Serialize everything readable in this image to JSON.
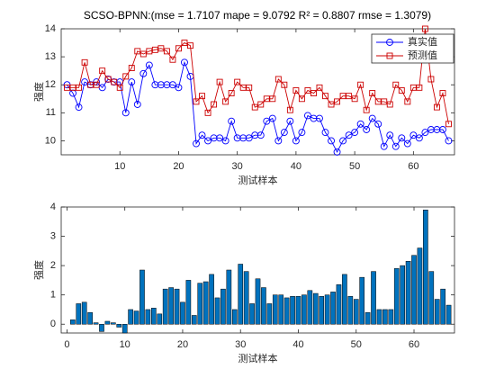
{
  "chart_data": [
    {
      "type": "line",
      "title": "SCSO-BPNN:(mse = 1.7107 mape = 9.0792  R² = 0.8807 rmse = 1.3079)",
      "x_label": "测试样本",
      "y_label": "强度",
      "xlim": [
        0,
        67
      ],
      "xticks": [
        10,
        20,
        30,
        40,
        50,
        60
      ],
      "ylim": [
        9.5,
        14
      ],
      "yticks": [
        10,
        11,
        12,
        13,
        14
      ],
      "legend": "upper right",
      "x": [
        1,
        2,
        3,
        4,
        5,
        6,
        7,
        8,
        9,
        10,
        11,
        12,
        13,
        14,
        15,
        16,
        17,
        18,
        19,
        20,
        21,
        22,
        23,
        24,
        25,
        26,
        27,
        28,
        29,
        30,
        31,
        32,
        33,
        34,
        35,
        36,
        37,
        38,
        39,
        40,
        41,
        42,
        43,
        44,
        45,
        46,
        47,
        48,
        49,
        50,
        51,
        52,
        53,
        54,
        55,
        56,
        57,
        58,
        59,
        60,
        61,
        62,
        63,
        64,
        65,
        66
      ],
      "series": [
        {
          "name": "真实值",
          "color": "#0000ff",
          "marker": "circle",
          "values": [
            12.0,
            11.7,
            11.2,
            12.1,
            12.0,
            12.1,
            11.9,
            12.2,
            12.1,
            12.1,
            11.0,
            12.1,
            11.3,
            12.4,
            12.7,
            12.0,
            12.0,
            12.0,
            12.0,
            11.9,
            12.8,
            12.3,
            9.9,
            10.2,
            10.0,
            10.1,
            10.1,
            10.0,
            10.7,
            10.1,
            10.1,
            10.1,
            10.2,
            10.2,
            10.7,
            10.8,
            10.0,
            10.3,
            10.7,
            10.0,
            10.3,
            10.9,
            10.8,
            10.8,
            10.3,
            10.0,
            9.6,
            10.0,
            10.2,
            10.3,
            10.6,
            10.4,
            10.8,
            10.6,
            9.8,
            10.2,
            9.8,
            10.1,
            9.9,
            10.2,
            10.1,
            10.3,
            10.4,
            10.4,
            10.4,
            10.0
          ]
        },
        {
          "name": "预测值",
          "color": "#cc0000",
          "marker": "square",
          "values": [
            11.9,
            11.9,
            11.9,
            12.8,
            12.0,
            12.0,
            12.5,
            12.2,
            12.1,
            11.9,
            12.3,
            12.6,
            13.2,
            13.1,
            13.2,
            13.25,
            13.3,
            13.2,
            12.9,
            13.3,
            13.5,
            13.4,
            11.4,
            11.6,
            11.0,
            11.3,
            12.1,
            11.4,
            11.7,
            12.1,
            11.9,
            11.9,
            11.2,
            11.3,
            11.5,
            11.5,
            12.2,
            12.0,
            11.1,
            11.8,
            11.5,
            11.8,
            11.7,
            11.9,
            11.6,
            11.3,
            11.4,
            11.6,
            11.6,
            11.5,
            12.0,
            11.1,
            11.7,
            11.4,
            11.4,
            11.3,
            12.0,
            11.8,
            11.4,
            11.9,
            11.9,
            14.0,
            12.2,
            11.2,
            11.7,
            10.6
          ]
        }
      ]
    },
    {
      "type": "bar",
      "x_label": "测试样本",
      "y_label": "强度",
      "xlim": [
        -1,
        67
      ],
      "xticks": [
        0,
        10,
        20,
        30,
        40,
        50,
        60
      ],
      "ylim": [
        -0.3,
        4
      ],
      "yticks": [
        0,
        1,
        2,
        3,
        4
      ],
      "color": "#0072bd",
      "x": [
        1,
        2,
        3,
        4,
        5,
        6,
        7,
        8,
        9,
        10,
        11,
        12,
        13,
        14,
        15,
        16,
        17,
        18,
        19,
        20,
        21,
        22,
        23,
        24,
        25,
        26,
        27,
        28,
        29,
        30,
        31,
        32,
        33,
        34,
        35,
        36,
        37,
        38,
        39,
        40,
        41,
        42,
        43,
        44,
        45,
        46,
        47,
        48,
        49,
        50,
        51,
        52,
        53,
        54,
        55,
        56,
        57,
        58,
        59,
        60,
        61,
        62,
        63,
        64,
        65,
        66
      ],
      "values": [
        0.15,
        0.7,
        0.75,
        0.4,
        0.05,
        -0.25,
        0.1,
        0.05,
        -0.1,
        -0.3,
        0.5,
        0.45,
        1.85,
        0.5,
        0.55,
        0.35,
        1.2,
        1.25,
        1.2,
        0.75,
        1.5,
        0.3,
        1.4,
        1.45,
        1.7,
        0.9,
        1.2,
        1.85,
        0.5,
        2.05,
        1.8,
        0.7,
        1.55,
        1.25,
        0.7,
        1.0,
        1.0,
        0.9,
        0.95,
        0.95,
        1.0,
        1.15,
        1.05,
        0.95,
        1.0,
        1.1,
        1.35,
        1.7,
        0.95,
        0.85,
        1.6,
        0.4,
        1.8,
        0.5,
        0.5,
        0.5,
        1.9,
        2.0,
        2.15,
        2.35,
        2.6,
        3.9,
        1.8,
        0.85,
        1.2,
        0.65
      ]
    }
  ]
}
